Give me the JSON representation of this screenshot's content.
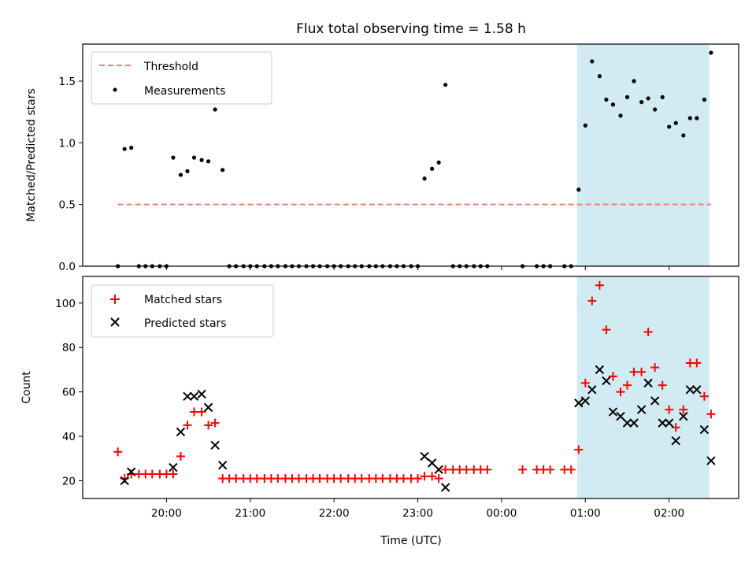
{
  "chart_data": [
    {
      "type": "scatter",
      "title": "Flux total observing time = 1.58 h",
      "xlabel": "",
      "ylabel": "Matched/Predicted stars",
      "ylim": [
        0,
        1.8
      ],
      "yticks": [
        0.0,
        0.5,
        1.0,
        1.5
      ],
      "ytick_labels": [
        "0.0",
        "0.5",
        "1.0",
        "1.5"
      ],
      "legend": {
        "placement": "upper-left",
        "entries": [
          "Threshold",
          "Measurements"
        ]
      },
      "threshold": {
        "name": "Threshold",
        "value": 0.5,
        "x_start": 19.42,
        "x_end": 26.5,
        "color": "#ff7777",
        "style": "dashed"
      },
      "highlight": {
        "x_start": 24.9,
        "x_end": 26.48,
        "color": "#add8e6"
      },
      "series": [
        {
          "name": "Measurements",
          "color": "#000000",
          "marker": "dot",
          "x": [
            19.42,
            19.5,
            19.58,
            19.67,
            19.75,
            19.83,
            19.92,
            20.0,
            20.08,
            20.17,
            20.25,
            20.33,
            20.42,
            20.5,
            20.58,
            20.67,
            20.75,
            20.83,
            20.92,
            21.0,
            21.08,
            21.17,
            21.25,
            21.33,
            21.42,
            21.5,
            21.58,
            21.67,
            21.75,
            21.83,
            21.92,
            22.0,
            22.08,
            22.17,
            22.25,
            22.33,
            22.42,
            22.5,
            22.58,
            22.67,
            22.75,
            22.83,
            22.92,
            23.0,
            23.08,
            23.17,
            23.25,
            23.33,
            23.42,
            23.5,
            23.58,
            23.67,
            23.75,
            23.83,
            24.25,
            24.42,
            24.5,
            24.58,
            24.75,
            24.83,
            24.92,
            25.0,
            25.08,
            25.17,
            25.25,
            25.33,
            25.42,
            25.5,
            25.58,
            25.67,
            25.75,
            25.83,
            25.92,
            26.0,
            26.08,
            26.17,
            26.25,
            26.33,
            26.42,
            26.5
          ],
          "y": [
            0.0,
            0.95,
            0.96,
            0.0,
            0.0,
            0.0,
            0.0,
            0.0,
            0.88,
            0.74,
            0.77,
            0.88,
            0.86,
            0.85,
            1.27,
            0.78,
            0.0,
            0.0,
            0.0,
            0.0,
            0.0,
            0.0,
            0.0,
            0.0,
            0.0,
            0.0,
            0.0,
            0.0,
            0.0,
            0.0,
            0.0,
            0.0,
            0.0,
            0.0,
            0.0,
            0.0,
            0.0,
            0.0,
            0.0,
            0.0,
            0.0,
            0.0,
            0.0,
            0.0,
            0.71,
            0.79,
            0.84,
            1.47,
            0.0,
            0.0,
            0.0,
            0.0,
            0.0,
            0.0,
            0.0,
            0.0,
            0.0,
            0.0,
            0.0,
            0.0,
            0.62,
            1.14,
            1.66,
            1.54,
            1.35,
            1.31,
            1.22,
            1.37,
            1.5,
            1.33,
            1.36,
            1.27,
            1.37,
            1.13,
            1.16,
            1.06,
            1.2,
            1.2,
            1.35,
            1.73
          ]
        }
      ]
    },
    {
      "type": "scatter",
      "xlabel": "Time (UTC)",
      "ylabel": "Count",
      "xlim": [
        19.0,
        26.83
      ],
      "xticks": [
        20,
        21,
        22,
        23,
        24,
        25,
        26
      ],
      "xtick_labels": [
        "20:00",
        "21:00",
        "22:00",
        "23:00",
        "00:00",
        "01:00",
        "02:00"
      ],
      "ylim": [
        12,
        112
      ],
      "yticks": [
        20,
        40,
        60,
        80,
        100
      ],
      "ytick_labels": [
        "20",
        "40",
        "60",
        "80",
        "100"
      ],
      "legend": {
        "placement": "upper-left",
        "entries": [
          "Matched stars",
          "Predicted stars"
        ]
      },
      "highlight": {
        "x_start": 24.9,
        "x_end": 26.48,
        "color": "#add8e6"
      },
      "series": [
        {
          "name": "Matched stars",
          "color": "#ff0000",
          "marker": "plus",
          "x": [
            19.42,
            19.5,
            19.58,
            19.67,
            19.75,
            19.83,
            19.92,
            20.0,
            20.08,
            20.17,
            20.25,
            20.33,
            20.42,
            20.5,
            20.58,
            20.67,
            20.75,
            20.83,
            20.92,
            21.0,
            21.08,
            21.17,
            21.25,
            21.33,
            21.42,
            21.5,
            21.58,
            21.67,
            21.75,
            21.83,
            21.92,
            22.0,
            22.08,
            22.17,
            22.25,
            22.33,
            22.42,
            22.5,
            22.58,
            22.67,
            22.75,
            22.83,
            22.92,
            23.0,
            23.08,
            23.17,
            23.25,
            23.33,
            23.42,
            23.5,
            23.58,
            23.67,
            23.75,
            23.83,
            24.25,
            24.42,
            24.5,
            24.58,
            24.75,
            24.83,
            24.92,
            25.0,
            25.08,
            25.17,
            25.25,
            25.33,
            25.42,
            25.5,
            25.58,
            25.67,
            25.75,
            25.83,
            25.92,
            26.0,
            26.08,
            26.17,
            26.25,
            26.33,
            26.42,
            26.5
          ],
          "y": [
            33,
            21,
            23,
            23,
            23,
            23,
            23,
            23,
            23,
            31,
            45,
            51,
            51,
            45,
            46,
            21,
            21,
            21,
            21,
            21,
            21,
            21,
            21,
            21,
            21,
            21,
            21,
            21,
            21,
            21,
            21,
            21,
            21,
            21,
            21,
            21,
            21,
            21,
            21,
            21,
            21,
            21,
            21,
            21,
            22,
            22,
            21,
            25,
            25,
            25,
            25,
            25,
            25,
            25,
            25,
            25,
            25,
            25,
            25,
            25,
            34,
            64,
            101,
            108,
            88,
            67,
            60,
            63,
            69,
            69,
            87,
            71,
            63,
            52,
            44,
            52,
            73,
            73,
            58,
            50
          ]
        },
        {
          "name": "Predicted stars",
          "color": "#000000",
          "marker": "x",
          "x": [
            19.5,
            19.58,
            20.08,
            20.17,
            20.25,
            20.33,
            20.42,
            20.5,
            20.58,
            20.67,
            23.08,
            23.17,
            23.25,
            23.33,
            24.92,
            25.0,
            25.08,
            25.17,
            25.25,
            25.33,
            25.42,
            25.5,
            25.58,
            25.67,
            25.75,
            25.83,
            25.92,
            26.0,
            26.08,
            26.17,
            26.25,
            26.33,
            26.42,
            26.5
          ],
          "y": [
            20,
            24,
            26,
            42,
            58,
            58,
            59,
            53,
            36,
            27,
            31,
            28,
            25,
            17,
            55,
            56,
            61,
            70,
            65,
            51,
            49,
            46,
            46,
            52,
            64,
            56,
            46,
            46,
            38,
            49,
            61,
            61,
            43,
            29
          ]
        }
      ]
    }
  ]
}
